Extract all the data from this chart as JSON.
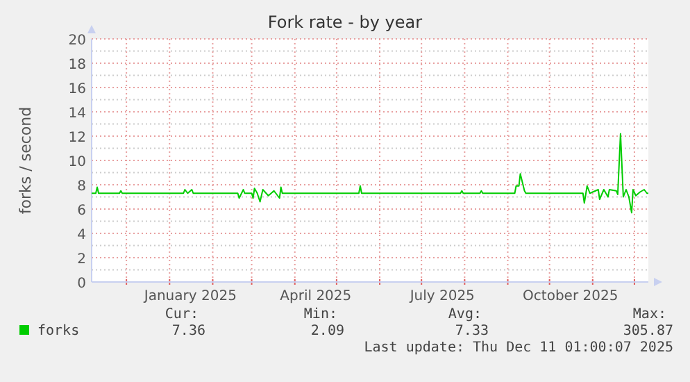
{
  "chart_data": {
    "type": "line",
    "title": "Fork rate - by year",
    "ylabel": "forks / second",
    "xlim": [
      "2024-11-06",
      "2025-12-11"
    ],
    "ylim": [
      0,
      20
    ],
    "yticks": [
      0,
      2,
      4,
      6,
      8,
      10,
      12,
      14,
      16,
      18,
      20
    ],
    "xticks": [
      {
        "value": "2024-12-01",
        "label": null
      },
      {
        "value": "2025-01-01",
        "label": null
      },
      {
        "value": "2025-01-16",
        "label": "January 2025"
      },
      {
        "value": "2025-02-01",
        "label": null
      },
      {
        "value": "2025-03-01",
        "label": null
      },
      {
        "value": "2025-04-01",
        "label": null
      },
      {
        "value": "2025-04-16",
        "label": "April 2025"
      },
      {
        "value": "2025-05-01",
        "label": null
      },
      {
        "value": "2025-06-01",
        "label": null
      },
      {
        "value": "2025-07-01",
        "label": null
      },
      {
        "value": "2025-07-16",
        "label": "July 2025"
      },
      {
        "value": "2025-08-01",
        "label": null
      },
      {
        "value": "2025-09-01",
        "label": null
      },
      {
        "value": "2025-10-01",
        "label": null
      },
      {
        "value": "2025-10-16",
        "label": "October 2025"
      },
      {
        "value": "2025-11-01",
        "label": null
      },
      {
        "value": "2025-12-01",
        "label": null
      }
    ],
    "grid": true,
    "legend": "bottom left",
    "x": [
      "2024-11-06",
      "2024-11-09",
      "2024-11-10",
      "2024-11-11",
      "2024-11-26",
      "2024-11-27",
      "2024-11-28",
      "2025-01-11",
      "2025-01-12",
      "2025-01-14",
      "2025-01-17",
      "2025-01-18",
      "2025-02-19",
      "2025-02-20",
      "2025-02-23",
      "2025-02-24",
      "2025-03-01",
      "2025-03-02",
      "2025-03-03",
      "2025-03-05",
      "2025-03-07",
      "2025-03-09",
      "2025-03-13",
      "2025-03-17",
      "2025-03-21",
      "2025-03-22",
      "2025-03-23",
      "2025-05-17",
      "2025-05-18",
      "2025-05-19",
      "2025-07-29",
      "2025-07-30",
      "2025-07-31",
      "2025-08-12",
      "2025-08-13",
      "2025-08-14",
      "2025-09-06",
      "2025-09-07",
      "2025-09-09",
      "2025-09-10",
      "2025-09-13",
      "2025-09-14",
      "2025-10-25",
      "2025-10-26",
      "2025-10-28",
      "2025-10-30",
      "2025-11-05",
      "2025-11-06",
      "2025-11-09",
      "2025-11-12",
      "2025-11-13",
      "2025-11-18",
      "2025-11-19",
      "2025-11-21",
      "2025-11-23",
      "2025-11-25",
      "2025-11-27",
      "2025-11-29",
      "2025-11-30",
      "2025-12-02",
      "2025-12-05",
      "2025-12-08",
      "2025-12-10",
      "2025-12-11"
    ],
    "series": [
      {
        "name": "forks",
        "color": "#00cc00",
        "values": [
          7.3,
          7.3,
          7.8,
          7.3,
          7.3,
          7.5,
          7.3,
          7.3,
          7.6,
          7.3,
          7.6,
          7.3,
          7.3,
          6.9,
          7.6,
          7.3,
          7.3,
          6.9,
          7.7,
          7.3,
          6.6,
          7.6,
          7.1,
          7.5,
          6.9,
          7.8,
          7.3,
          7.3,
          7.9,
          7.3,
          7.3,
          7.5,
          7.3,
          7.3,
          7.5,
          7.3,
          7.3,
          7.9,
          7.9,
          8.9,
          7.5,
          7.3,
          7.3,
          6.5,
          7.9,
          7.3,
          7.6,
          6.8,
          7.6,
          7.0,
          7.6,
          7.5,
          7.2,
          12.2,
          7.0,
          7.6,
          7.0,
          5.7,
          7.6,
          7.1,
          7.4,
          7.6,
          7.3,
          7.3
        ]
      }
    ],
    "annotations": [
      "Cur:",
      "Min:",
      "Avg:",
      "Max:",
      "7.36",
      "2.09",
      "7.33",
      "305.87",
      "Last update: Thu Dec 11 01:00:07 2025"
    ]
  }
}
